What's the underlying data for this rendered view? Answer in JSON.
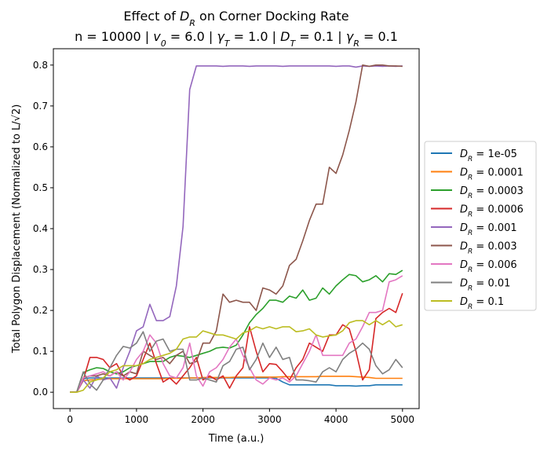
{
  "chart_data": {
    "type": "line",
    "title_line1": "Effect of D_R on Corner Docking Rate",
    "title_line2": "n = 10000 | v_0 = 6.0 | γ_T = 1.0 | D_T = 0.1 | γ_R = 0.1",
    "xlabel": "Time (a.u.)",
    "ylabel": "Total Polygon Displacement (Normalized to L/√2)",
    "xlim": [
      -250,
      5250
    ],
    "ylim": [
      -0.04,
      0.84
    ],
    "xticks": [
      0,
      1000,
      2000,
      3000,
      4000,
      5000
    ],
    "yticks": [
      0.0,
      0.1,
      0.2,
      0.3,
      0.4,
      0.5,
      0.6,
      0.7,
      0.8
    ],
    "xtick_labels": [
      "0",
      "1000",
      "2000",
      "3000",
      "4000",
      "5000"
    ],
    "ytick_labels": [
      "0.0",
      "0.1",
      "0.2",
      "0.3",
      "0.4",
      "0.5",
      "0.6",
      "0.7",
      "0.8"
    ],
    "grid": false,
    "legend_position": "outside-right",
    "legend_prefix": "D_R = ",
    "x": [
      0,
      100,
      200,
      300,
      400,
      500,
      600,
      700,
      800,
      900,
      1000,
      1100,
      1200,
      1300,
      1400,
      1500,
      1600,
      1700,
      1800,
      1900,
      2000,
      2100,
      2200,
      2300,
      2400,
      2500,
      2600,
      2700,
      2800,
      2900,
      3000,
      3100,
      3200,
      3300,
      3400,
      3500,
      3600,
      3700,
      3800,
      3900,
      4000,
      4100,
      4200,
      4300,
      4400,
      4500,
      4600,
      4700,
      4800,
      4900,
      5000
    ],
    "series": [
      {
        "name": "1e-05",
        "color": "#1f77b4",
        "values": [
          0.0,
          0.0,
          0.033,
          0.035,
          0.035,
          0.035,
          0.035,
          0.035,
          0.035,
          0.035,
          0.035,
          0.035,
          0.035,
          0.035,
          0.035,
          0.035,
          0.035,
          0.035,
          0.035,
          0.035,
          0.035,
          0.035,
          0.035,
          0.035,
          0.035,
          0.035,
          0.035,
          0.035,
          0.035,
          0.035,
          0.035,
          0.034,
          0.025,
          0.018,
          0.018,
          0.018,
          0.018,
          0.018,
          0.018,
          0.018,
          0.016,
          0.016,
          0.016,
          0.015,
          0.016,
          0.016,
          0.018,
          0.018,
          0.018,
          0.018,
          0.018
        ]
      },
      {
        "name": "0.0001",
        "color": "#ff7f0e",
        "values": [
          0.0,
          0.0,
          0.028,
          0.03,
          0.031,
          0.032,
          0.033,
          0.033,
          0.033,
          0.033,
          0.033,
          0.033,
          0.033,
          0.033,
          0.033,
          0.034,
          0.034,
          0.034,
          0.035,
          0.035,
          0.036,
          0.036,
          0.036,
          0.036,
          0.036,
          0.037,
          0.037,
          0.037,
          0.037,
          0.037,
          0.037,
          0.037,
          0.038,
          0.038,
          0.038,
          0.038,
          0.038,
          0.038,
          0.039,
          0.039,
          0.039,
          0.039,
          0.039,
          0.038,
          0.037,
          0.036,
          0.034,
          0.034,
          0.034,
          0.034,
          0.034
        ]
      },
      {
        "name": "0.0003",
        "color": "#2ca02c",
        "values": [
          0.0,
          0.0,
          0.048,
          0.055,
          0.06,
          0.058,
          0.05,
          0.045,
          0.05,
          0.06,
          0.065,
          0.07,
          0.075,
          0.075,
          0.075,
          0.085,
          0.09,
          0.088,
          0.085,
          0.09,
          0.095,
          0.1,
          0.108,
          0.11,
          0.108,
          0.115,
          0.14,
          0.17,
          0.19,
          0.205,
          0.225,
          0.225,
          0.22,
          0.235,
          0.23,
          0.25,
          0.225,
          0.23,
          0.255,
          0.24,
          0.26,
          0.275,
          0.288,
          0.285,
          0.27,
          0.275,
          0.285,
          0.27,
          0.29,
          0.288,
          0.298
        ]
      },
      {
        "name": "0.0006",
        "color": "#d62728",
        "values": [
          0.0,
          0.0,
          0.03,
          0.085,
          0.085,
          0.08,
          0.06,
          0.07,
          0.04,
          0.03,
          0.04,
          0.08,
          0.12,
          0.07,
          0.025,
          0.035,
          0.02,
          0.04,
          0.06,
          0.085,
          0.03,
          0.04,
          0.03,
          0.04,
          0.01,
          0.04,
          0.06,
          0.16,
          0.1,
          0.05,
          0.07,
          0.068,
          0.05,
          0.03,
          0.06,
          0.08,
          0.12,
          0.11,
          0.1,
          0.14,
          0.14,
          0.165,
          0.155,
          0.1,
          0.03,
          0.055,
          0.18,
          0.195,
          0.205,
          0.195,
          0.242
        ]
      },
      {
        "name": "0.001",
        "color": "#9467bd",
        "values": [
          0.0,
          0.0,
          0.03,
          0.01,
          0.04,
          0.03,
          0.035,
          0.01,
          0.06,
          0.1,
          0.15,
          0.16,
          0.215,
          0.175,
          0.175,
          0.185,
          0.26,
          0.405,
          0.74,
          0.798,
          0.798,
          0.798,
          0.798,
          0.797,
          0.798,
          0.798,
          0.798,
          0.797,
          0.798,
          0.798,
          0.798,
          0.798,
          0.797,
          0.798,
          0.798,
          0.798,
          0.798,
          0.798,
          0.798,
          0.798,
          0.797,
          0.798,
          0.798,
          0.795,
          0.798,
          0.797,
          0.798,
          0.797,
          0.798,
          0.797,
          0.798
        ]
      },
      {
        "name": "0.003",
        "color": "#8c564b",
        "values": [
          0.0,
          0.0,
          0.035,
          0.04,
          0.04,
          0.045,
          0.04,
          0.05,
          0.04,
          0.05,
          0.045,
          0.1,
          0.09,
          0.08,
          0.085,
          0.07,
          0.09,
          0.1,
          0.07,
          0.075,
          0.12,
          0.12,
          0.15,
          0.24,
          0.22,
          0.225,
          0.22,
          0.22,
          0.2,
          0.255,
          0.25,
          0.24,
          0.26,
          0.31,
          0.325,
          0.37,
          0.42,
          0.46,
          0.46,
          0.55,
          0.535,
          0.58,
          0.64,
          0.71,
          0.8,
          0.797,
          0.8,
          0.8,
          0.798,
          0.798,
          0.797
        ]
      },
      {
        "name": "0.006",
        "color": "#e377c2",
        "values": [
          0.0,
          0.0,
          0.035,
          0.04,
          0.045,
          0.05,
          0.04,
          0.05,
          0.03,
          0.05,
          0.08,
          0.1,
          0.14,
          0.12,
          0.07,
          0.04,
          0.035,
          0.06,
          0.12,
          0.04,
          0.015,
          0.05,
          0.06,
          0.08,
          0.11,
          0.13,
          0.09,
          0.06,
          0.03,
          0.02,
          0.035,
          0.03,
          0.035,
          0.025,
          0.04,
          0.07,
          0.1,
          0.14,
          0.09,
          0.09,
          0.09,
          0.09,
          0.12,
          0.13,
          0.16,
          0.195,
          0.195,
          0.2,
          0.27,
          0.275,
          0.285
        ]
      },
      {
        "name": "0.01",
        "color": "#7f7f7f",
        "values": [
          0.0,
          0.0,
          0.05,
          0.02,
          0.005,
          0.03,
          0.06,
          0.09,
          0.112,
          0.108,
          0.12,
          0.148,
          0.1,
          0.125,
          0.13,
          0.1,
          0.105,
          0.105,
          0.03,
          0.03,
          0.035,
          0.03,
          0.025,
          0.065,
          0.075,
          0.105,
          0.11,
          0.055,
          0.08,
          0.12,
          0.085,
          0.11,
          0.08,
          0.085,
          0.03,
          0.03,
          0.028,
          0.025,
          0.05,
          0.06,
          0.05,
          0.08,
          0.095,
          0.105,
          0.12,
          0.105,
          0.065,
          0.045,
          0.055,
          0.08,
          0.06
        ]
      },
      {
        "name": "0.1",
        "color": "#bcbd22",
        "values": [
          0.0,
          0.0,
          0.005,
          0.025,
          0.03,
          0.035,
          0.05,
          0.055,
          0.065,
          0.065,
          0.065,
          0.07,
          0.08,
          0.085,
          0.09,
          0.095,
          0.105,
          0.13,
          0.135,
          0.135,
          0.15,
          0.145,
          0.14,
          0.14,
          0.135,
          0.13,
          0.145,
          0.15,
          0.16,
          0.155,
          0.16,
          0.155,
          0.16,
          0.16,
          0.148,
          0.15,
          0.155,
          0.14,
          0.135,
          0.138,
          0.14,
          0.15,
          0.17,
          0.175,
          0.175,
          0.165,
          0.175,
          0.165,
          0.175,
          0.16,
          0.165
        ]
      }
    ]
  }
}
